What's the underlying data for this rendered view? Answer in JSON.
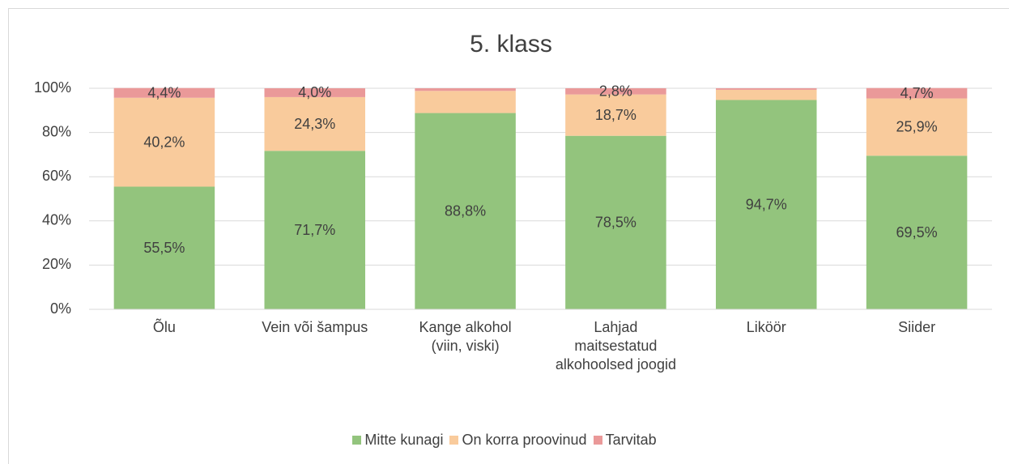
{
  "chart_data": {
    "type": "stacked_bar",
    "title": "5. klass",
    "categories": [
      "Õlu",
      "Vein või šampus",
      "Kange alkohol (viin, viski)",
      "Lahjad maitsestatud alkohoolsed joogid",
      "Liköör",
      "Siider"
    ],
    "series": [
      {
        "name": "Mitte kunagi",
        "color": "#93c47d",
        "values": [
          55.5,
          71.7,
          88.8,
          78.5,
          94.7,
          69.5
        ],
        "value_labels": [
          "55,5%",
          "71,7%",
          "88,8%",
          "78,5%",
          "94,7%",
          "69,5%"
        ]
      },
      {
        "name": "On korra proovinud",
        "color": "#f9cb9c",
        "values": [
          40.2,
          24.3,
          10.0,
          18.7,
          4.6,
          25.9
        ],
        "value_labels": [
          "40,2%",
          "24,3%",
          null,
          "18,7%",
          null,
          "25,9%"
        ]
      },
      {
        "name": "Tarvitab",
        "color": "#ea9999",
        "values": [
          4.4,
          4.0,
          1.2,
          2.8,
          0.7,
          4.7
        ],
        "value_labels": [
          "4,4%",
          "4,0%",
          null,
          "2,8%",
          null,
          "4,7%"
        ]
      }
    ],
    "ylim": [
      0,
      100
    ],
    "yticks": [
      {
        "value": 0,
        "label": "0%"
      },
      {
        "value": 20,
        "label": "20%"
      },
      {
        "value": 40,
        "label": "40%"
      },
      {
        "value": 60,
        "label": "60%"
      },
      {
        "value": 80,
        "label": "80%"
      },
      {
        "value": 100,
        "label": "100%"
      }
    ],
    "grid": true,
    "legend": "bottom"
  }
}
